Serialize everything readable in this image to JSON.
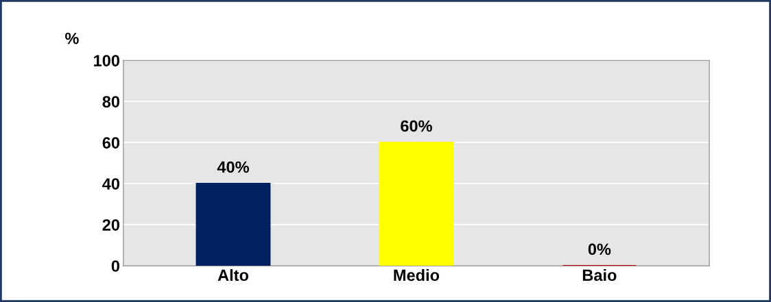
{
  "chart_data": {
    "type": "bar",
    "ylabel": "%",
    "categories": [
      "Alto",
      "Medio",
      "Baio"
    ],
    "values": [
      40,
      60,
      0
    ],
    "colors": [
      "#002060",
      "#ffff00",
      "#c00000"
    ],
    "value_labels": [
      "40%",
      "60%",
      "0%"
    ],
    "ylim": [
      0,
      100
    ],
    "yticks": [
      0,
      20,
      40,
      60,
      80,
      100
    ],
    "grid": "y"
  }
}
